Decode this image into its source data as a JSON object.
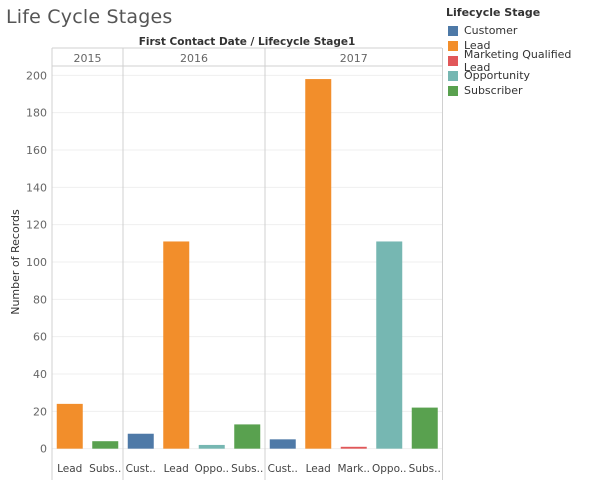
{
  "title": "Life Cycle Stages",
  "legend": {
    "title": "Lifecycle Stage",
    "items": [
      {
        "label": "Customer",
        "color": "#4e79a7"
      },
      {
        "label": "Lead",
        "color": "#f28e2b"
      },
      {
        "label": "Marketing Qualified Lead",
        "color": "#e15759"
      },
      {
        "label": "Opportunity",
        "color": "#76b7b2"
      },
      {
        "label": "Subscriber",
        "color": "#59a14f"
      }
    ]
  },
  "chart_data": {
    "type": "bar",
    "title": "Life Cycle Stages",
    "header": "First Contact Date / Lifecycle Stage1",
    "ylabel": "Number of Records",
    "ylim": [
      -5,
      205
    ],
    "yticks": [
      0,
      20,
      40,
      60,
      80,
      100,
      120,
      140,
      160,
      180,
      200
    ],
    "grid": true,
    "legend_position": "right",
    "groups": [
      {
        "year": "2015",
        "bars": [
          {
            "category": "Lead",
            "tick": "Lead",
            "value": 24
          },
          {
            "category": "Subscriber",
            "tick": "Subs..",
            "value": 4
          }
        ]
      },
      {
        "year": "2016",
        "bars": [
          {
            "category": "Customer",
            "tick": "Cust..",
            "value": 8
          },
          {
            "category": "Lead",
            "tick": "Lead",
            "value": 111
          },
          {
            "category": "Opportunity",
            "tick": "Oppo..",
            "value": 2
          },
          {
            "category": "Subscriber",
            "tick": "Subs..",
            "value": 13
          }
        ]
      },
      {
        "year": "2017",
        "bars": [
          {
            "category": "Customer",
            "tick": "Cust..",
            "value": 5
          },
          {
            "category": "Lead",
            "tick": "Lead",
            "value": 198
          },
          {
            "category": "Marketing Qualified Lead",
            "tick": "Mark..",
            "value": 1
          },
          {
            "category": "Opportunity",
            "tick": "Oppo..",
            "value": 111
          },
          {
            "category": "Subscriber",
            "tick": "Subs..",
            "value": 22
          }
        ]
      }
    ]
  }
}
